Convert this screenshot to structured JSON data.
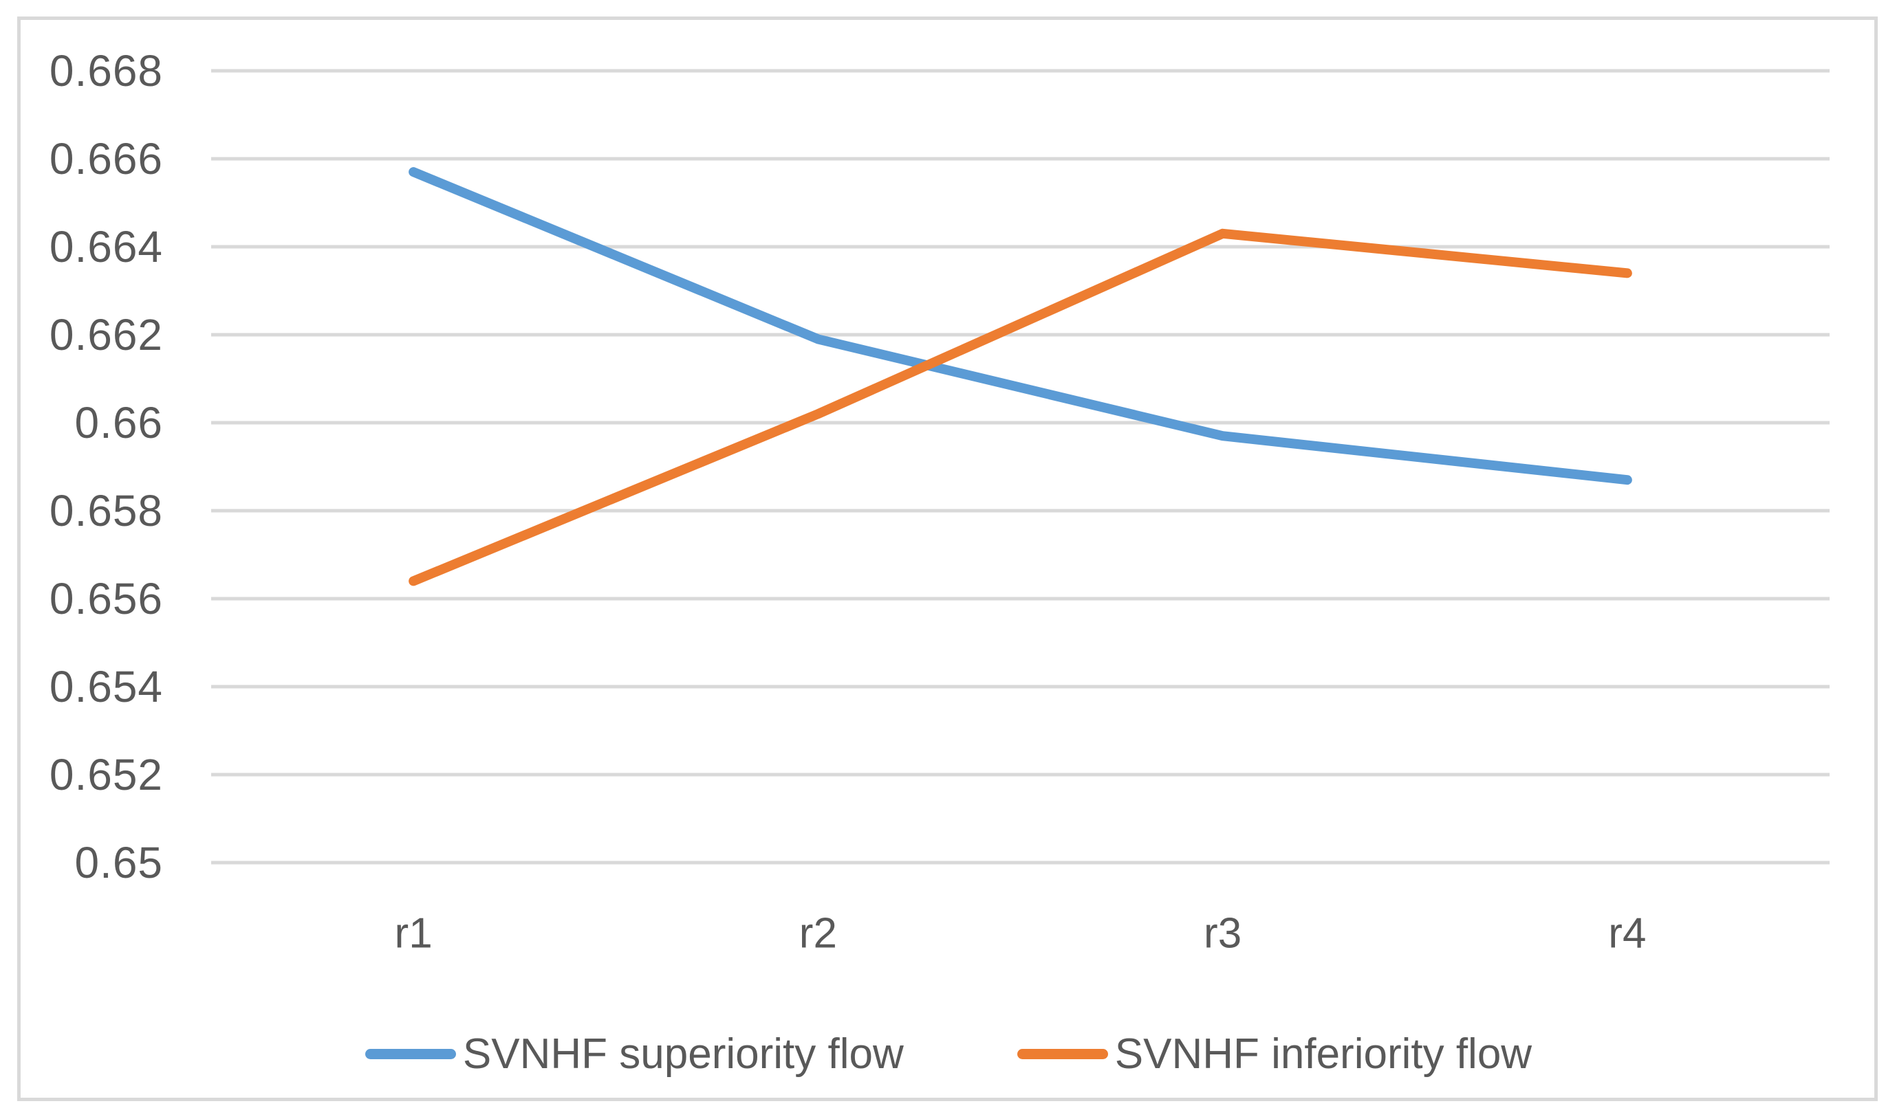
{
  "chart_data": {
    "type": "line",
    "title": "",
    "xlabel": "",
    "ylabel": "",
    "categories": [
      "r1",
      "r2",
      "r3",
      "r4"
    ],
    "series": [
      {
        "name": "SVNHF superiority flow",
        "color": "#5B9BD5",
        "values": [
          0.6657,
          0.6619,
          0.6597,
          0.6587
        ]
      },
      {
        "name": "SVNHF inferiority flow",
        "color": "#ED7D31",
        "values": [
          0.6564,
          0.6602,
          0.6643,
          0.6634
        ]
      }
    ],
    "ylim": [
      0.65,
      0.668
    ],
    "ytick_step": 0.002,
    "ytick_labels": [
      "0.668",
      "0.666",
      "0.664",
      "0.662",
      "0.66",
      "0.658",
      "0.656",
      "0.654",
      "0.652",
      "0.65"
    ],
    "grid": "horizontal-only",
    "legend_position": "bottom-center"
  },
  "styles": {
    "background_color": "#FFFFFF",
    "border_color": "#D9D9D9",
    "gridline_color": "#D9D9D9",
    "tick_text_color": "#595959",
    "series1_color": "#5B9BD5",
    "series2_color": "#ED7D31"
  }
}
